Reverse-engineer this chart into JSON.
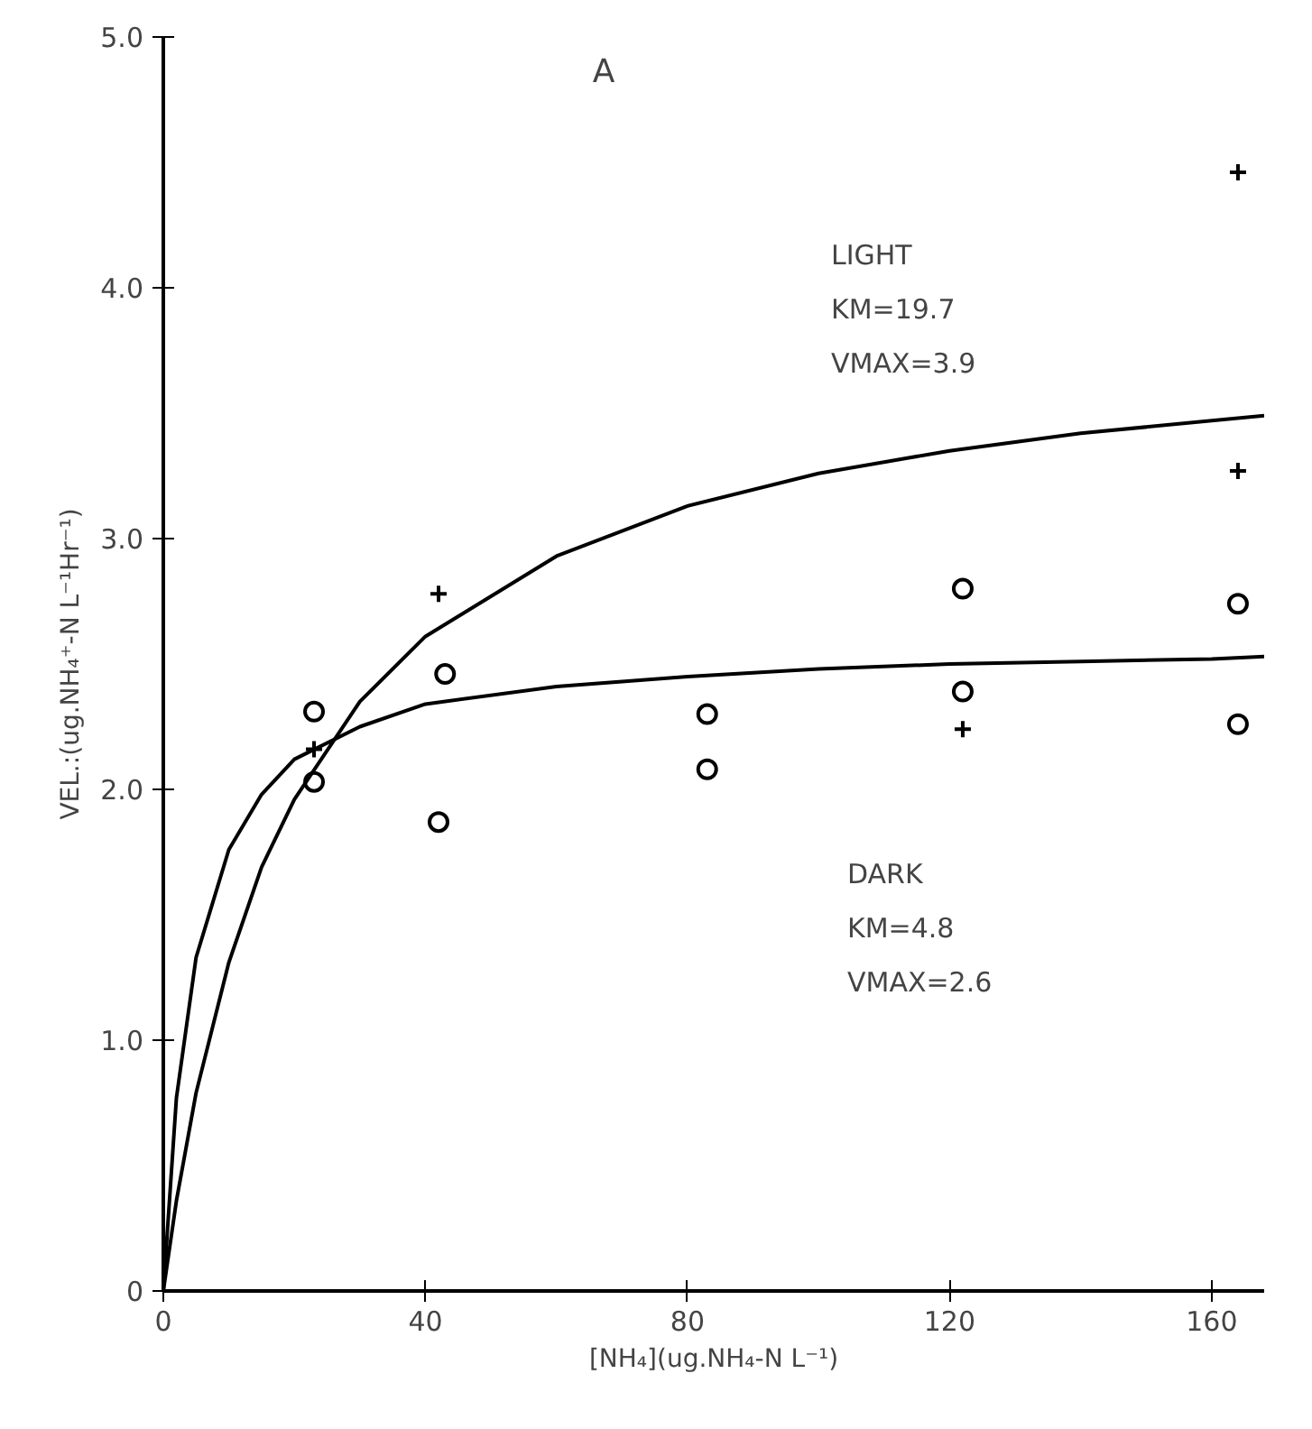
{
  "chart_data": {
    "type": "scatter",
    "title": "A",
    "xlabel": "[NH₄](ug.NH₄-N L⁻¹)",
    "ylabel": "VEL.:(ug.NH₄⁺-N L⁻¹Hr⁻¹)",
    "xlim": [
      0,
      168
    ],
    "ylim": [
      0,
      5.0
    ],
    "xticks": [
      0,
      40,
      80,
      120,
      160
    ],
    "yticks": [
      0,
      {
        "value": 1,
        "label": "1.0"
      },
      {
        "value": 2,
        "label": "2.0"
      },
      {
        "value": 3,
        "label": "3.0"
      },
      {
        "value": 4,
        "label": "4.0"
      },
      {
        "value": 5,
        "label": "5.0"
      }
    ],
    "grid": false,
    "series": [
      {
        "marker": "cross",
        "color": "#000000",
        "x": [
          23,
          42,
          122,
          164,
          164
        ],
        "values": [
          2.16,
          2.78,
          2.24,
          3.27,
          4.46
        ]
      },
      {
        "marker": "circle",
        "color": "#000000",
        "x": [
          23,
          23,
          43,
          42,
          83,
          83,
          122,
          122,
          164,
          164
        ],
        "values": [
          2.31,
          2.03,
          2.46,
          1.87,
          2.3,
          2.08,
          2.8,
          2.39,
          2.74,
          2.26
        ]
      },
      {
        "type": "line",
        "marker": "none",
        "color": "#000000",
        "x": [
          0,
          2,
          5,
          10,
          15,
          20,
          30,
          40,
          60,
          80,
          100,
          120,
          140,
          160,
          168
        ],
        "values": [
          0,
          0.36,
          0.79,
          1.31,
          1.69,
          1.96,
          2.35,
          2.61,
          2.93,
          3.13,
          3.26,
          3.35,
          3.42,
          3.47,
          3.49
        ]
      },
      {
        "type": "line",
        "marker": "none",
        "color": "#000000",
        "x": [
          0,
          2,
          5,
          10,
          15,
          20,
          30,
          40,
          60,
          80,
          100,
          120,
          140,
          160,
          168
        ],
        "values": [
          0,
          0.77,
          1.33,
          1.76,
          1.98,
          2.12,
          2.25,
          2.34,
          2.41,
          2.45,
          2.48,
          2.5,
          2.51,
          2.52,
          2.53
        ]
      }
    ],
    "annotations": [
      "LIGHT",
      "KM=19.7",
      "VMAX=3.9",
      "DARK",
      "KM=4.8",
      "VMAX=2.6"
    ]
  }
}
